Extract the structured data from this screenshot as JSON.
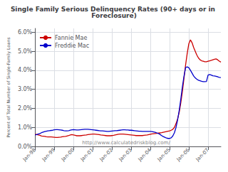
{
  "chart_data": {
    "type": "line",
    "title": "Single Family Serious Delinquency Rates (90+ days or in Foreclosure)",
    "y_label": "Percent of Total Number of Single-Family Loans",
    "annotations": [
      "http://www.calculatedriskblog.com/"
    ],
    "categories": [
      "Jan-98",
      null,
      null,
      null,
      null,
      null,
      null,
      null,
      null,
      null,
      null,
      null,
      "Jan-99",
      null,
      null,
      null,
      null,
      null,
      null,
      null,
      null,
      null,
      null,
      null,
      "Jan-00",
      null,
      null,
      null,
      null,
      null,
      null,
      null,
      null,
      null,
      null,
      null,
      "Jan-01",
      null,
      null,
      null,
      null,
      null,
      null,
      null,
      null,
      null,
      null,
      null,
      "Jan-02",
      null,
      null,
      null,
      null,
      null,
      null,
      null,
      null,
      null,
      null,
      null,
      "Jan-03",
      null,
      null,
      null,
      null,
      null,
      null,
      null,
      null,
      null,
      null,
      null,
      "Jan-04",
      null,
      null,
      null,
      null,
      null,
      null,
      null,
      null,
      null,
      null,
      null,
      "Jan-05",
      null,
      null,
      null,
      null,
      null,
      null,
      null,
      null,
      null,
      null,
      null,
      "Jan-06",
      null,
      null,
      null,
      null,
      null,
      null,
      null,
      null,
      null,
      null,
      null,
      "Jan-07",
      null,
      null,
      null,
      null,
      null,
      null,
      null,
      null
    ],
    "series": [
      {
        "name": "Fannie Mae",
        "color": "#cc0000",
        "values": [
          0.0064,
          0.0063,
          0.006,
          0.0058,
          0.0055,
          0.0054,
          0.0053,
          0.0051,
          0.005,
          0.005,
          0.005,
          0.0049,
          0.0048,
          0.0047,
          0.0047,
          0.0048,
          0.0049,
          0.0051,
          0.0052,
          0.0053,
          0.0055,
          0.0057,
          0.006,
          0.0062,
          0.006,
          0.0058,
          0.0056,
          0.0056,
          0.0056,
          0.0057,
          0.0058,
          0.0059,
          0.006,
          0.0062,
          0.0063,
          0.0064,
          0.0065,
          0.0065,
          0.0064,
          0.0063,
          0.0062,
          0.006,
          0.0059,
          0.0058,
          0.0057,
          0.0056,
          0.0056,
          0.0056,
          0.0057,
          0.0058,
          0.006,
          0.0062,
          0.0064,
          0.0065,
          0.0065,
          0.0065,
          0.0064,
          0.0063,
          0.0062,
          0.0061,
          0.006,
          0.0059,
          0.0058,
          0.0057,
          0.0057,
          0.0057,
          0.0057,
          0.0057,
          0.0058,
          0.0059,
          0.006,
          0.0062,
          0.0064,
          0.0066,
          0.0067,
          0.0068,
          0.0069,
          0.007,
          0.0071,
          0.0072,
          0.0074,
          0.0076,
          0.0078,
          0.008,
          0.0082,
          0.0085,
          0.009,
          0.01,
          0.012,
          0.0145,
          0.018,
          0.023,
          0.029,
          0.036,
          0.043,
          0.049,
          0.054,
          0.056,
          0.0545,
          0.052,
          0.05,
          0.048,
          0.0465,
          0.0455,
          0.045,
          0.0448,
          0.0445,
          0.0445,
          0.0448,
          0.045,
          0.0452,
          0.0455,
          0.0458,
          0.046,
          0.0455,
          0.0448,
          0.0443
        ]
      },
      {
        "name": "Freddie Mac",
        "color": "#0000cc",
        "values": [
          0.006,
          0.0062,
          0.0065,
          0.0068,
          0.0072,
          0.0075,
          0.0078,
          0.008,
          0.0082,
          0.0083,
          0.0084,
          0.0085,
          0.0087,
          0.0088,
          0.0088,
          0.0087,
          0.0086,
          0.0085,
          0.0083,
          0.0082,
          0.0082,
          0.0083,
          0.0085,
          0.0087,
          0.0088,
          0.0087,
          0.0086,
          0.0086,
          0.0087,
          0.0088,
          0.0089,
          0.009,
          0.009,
          0.009,
          0.0089,
          0.0088,
          0.0087,
          0.0086,
          0.0085,
          0.0084,
          0.0083,
          0.0082,
          0.0082,
          0.0081,
          0.008,
          0.0079,
          0.0079,
          0.008,
          0.0081,
          0.0082,
          0.0083,
          0.0083,
          0.0084,
          0.0085,
          0.0086,
          0.0087,
          0.0087,
          0.0086,
          0.0086,
          0.0085,
          0.0085,
          0.0084,
          0.0083,
          0.0082,
          0.0081,
          0.008,
          0.008,
          0.0079,
          0.0079,
          0.0079,
          0.0079,
          0.0079,
          0.0079,
          0.0078,
          0.0076,
          0.0074,
          0.0071,
          0.0068,
          0.0063,
          0.0057,
          0.0052,
          0.0048,
          0.0044,
          0.0042,
          0.0042,
          0.0045,
          0.0055,
          0.0072,
          0.01,
          0.014,
          0.019,
          0.025,
          0.0315,
          0.037,
          0.0415,
          0.0418,
          0.0413,
          0.04,
          0.0385,
          0.037,
          0.036,
          0.0353,
          0.0348,
          0.0345,
          0.0342,
          0.034,
          0.034,
          0.0341,
          0.0375,
          0.0378,
          0.0375,
          0.0371,
          0.037,
          0.0368,
          0.0366,
          0.0363,
          0.0362
        ]
      }
    ],
    "ylim": [
      0.0,
      0.062
    ],
    "yticks": [
      {
        "value": 0.0,
        "label": "0.0%"
      },
      {
        "value": 0.01,
        "label": "1.0%"
      },
      {
        "value": 0.02,
        "label": "2.0%"
      },
      {
        "value": 0.03,
        "label": "3.0%"
      },
      {
        "value": 0.04,
        "label": "4.0%"
      },
      {
        "value": 0.05,
        "label": "5.0%"
      },
      {
        "value": 0.06,
        "label": "6.0%"
      }
    ],
    "grid": true,
    "legend": "upper left"
  }
}
